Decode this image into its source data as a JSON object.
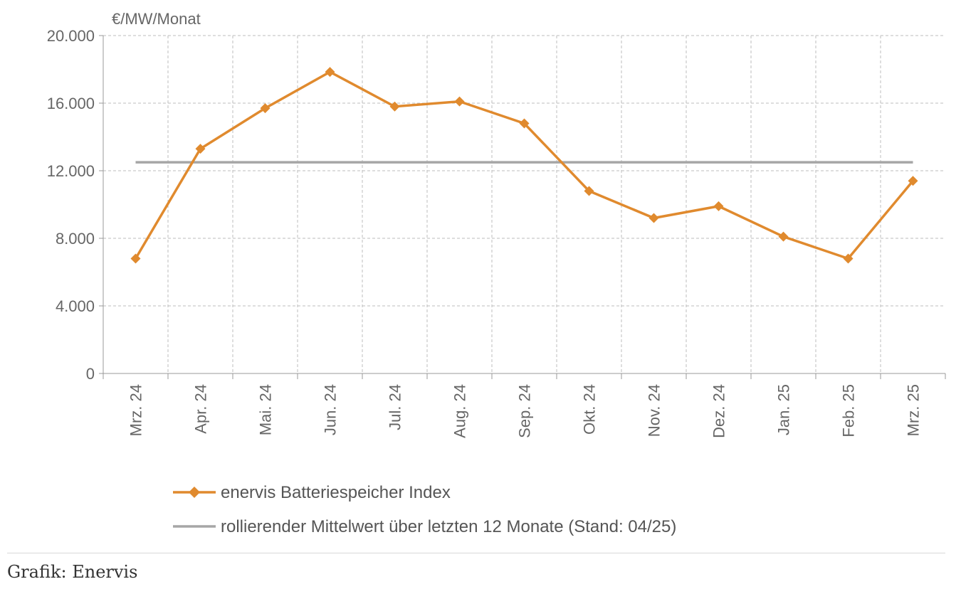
{
  "chart_data": {
    "type": "line",
    "ylabel": "€/MW/Monat",
    "ylim": [
      0,
      20000
    ],
    "yticks": [
      0,
      4000,
      8000,
      12000,
      16000,
      20000
    ],
    "ytick_labels": [
      "0",
      "4.000",
      "8.000",
      "12.000",
      "16.000",
      "20.000"
    ],
    "grid": true,
    "categories": [
      "Mrz. 24",
      "Apr. 24",
      "Mai. 24",
      "Jun. 24",
      "Jul. 24",
      "Aug. 24",
      "Sep. 24",
      "Okt. 24",
      "Nov. 24",
      "Dez. 24",
      "Jan. 25",
      "Feb. 25",
      "Mrz. 25"
    ],
    "series": [
      {
        "name": "enervis Batteriespeicher Index",
        "color": "#E08A2E",
        "marker": "diamond",
        "values": [
          6800,
          13300,
          15700,
          17850,
          15800,
          16100,
          14800,
          10800,
          9200,
          9900,
          8100,
          6800,
          11400
        ]
      },
      {
        "name": "rollierender Mittelwert über letzten 12 Monate (Stand: 04/25)",
        "color": "#A6A6A6",
        "marker": "none",
        "values": [
          12500,
          12500,
          12500,
          12500,
          12500,
          12500,
          12500,
          12500,
          12500,
          12500,
          12500,
          12500,
          12500
        ]
      }
    ],
    "legend_position": "bottom"
  },
  "caption": "Grafik: Enervis"
}
